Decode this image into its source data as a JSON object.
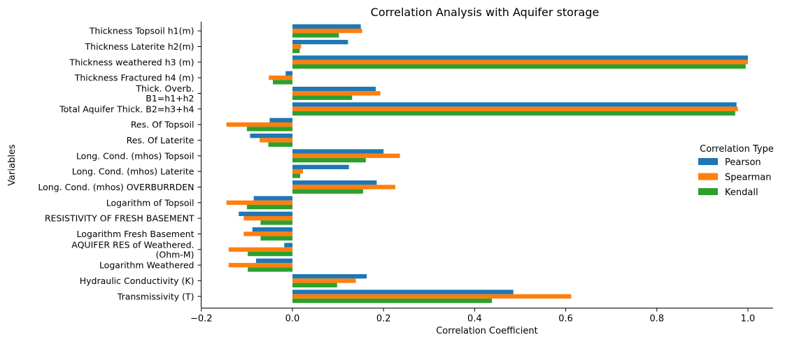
{
  "chart_data": {
    "type": "bar",
    "orientation": "horizontal",
    "title": "Correlation Analysis with Aquifer storage",
    "xlabel": "Correlation Coefficient",
    "ylabel": "Variables",
    "xlim": [
      -0.2,
      1.06
    ],
    "xticks": [
      -0.2,
      0.0,
      0.2,
      0.4,
      0.6,
      0.8,
      1.0
    ],
    "xtick_labels": [
      "−0.2",
      "0.0",
      "0.2",
      "0.4",
      "0.6",
      "0.8",
      "1.0"
    ],
    "grid": false,
    "legend": {
      "title": "Correlation Type",
      "placement": "center-right"
    },
    "categories": [
      [
        "Thickness Topsoil h1(m)"
      ],
      [
        "Thickness Laterite h2(m)"
      ],
      [
        "Thickness weathered h3 (m)"
      ],
      [
        "Thickness Fractured h4 (m)"
      ],
      [
        "Thick. Overb.",
        "B1=h1+h2"
      ],
      [
        "Total Aquifer Thick. B2=h3+h4"
      ],
      [
        "Res. Of Topsoil"
      ],
      [
        "Res. Of Laterite"
      ],
      [
        "Long. Cond. (mhos) Topsoil"
      ],
      [
        "Long. Cond. (mhos) Laterite"
      ],
      [
        "Long. Cond. (mhos) OVERBURRDEN"
      ],
      [
        "Logarithm of Topsoil"
      ],
      [
        "RESISTIVITY OF FRESH BASEMENT"
      ],
      [
        "Logarithm Fresh Basement"
      ],
      [
        "AQUIFER RES of Weathered.",
        "(Ohm-M)"
      ],
      [
        "Logarithm Weathered"
      ],
      [
        "Hydraulic Conductivity (K)"
      ],
      [
        "Transmissivity (T)"
      ]
    ],
    "series": [
      {
        "name": "Pearson",
        "color": "#1f77b4",
        "values": [
          0.15,
          0.122,
          1.0,
          -0.015,
          0.183,
          0.975,
          -0.05,
          -0.093,
          0.2,
          0.124,
          0.185,
          -0.085,
          -0.118,
          -0.088,
          -0.018,
          -0.08,
          0.163,
          0.485
        ]
      },
      {
        "name": "Spearman",
        "color": "#ff7f0e",
        "values": [
          0.153,
          0.019,
          1.0,
          -0.052,
          0.193,
          0.978,
          -0.145,
          -0.072,
          0.236,
          0.023,
          0.226,
          -0.145,
          -0.107,
          -0.107,
          -0.14,
          -0.14,
          0.139,
          0.612
        ]
      },
      {
        "name": "Kendall",
        "color": "#2ca02c",
        "values": [
          0.102,
          0.016,
          0.995,
          -0.043,
          0.131,
          0.972,
          -0.1,
          -0.053,
          0.161,
          0.017,
          0.155,
          -0.1,
          -0.07,
          -0.07,
          -0.098,
          -0.098,
          0.098,
          0.438
        ]
      }
    ]
  }
}
